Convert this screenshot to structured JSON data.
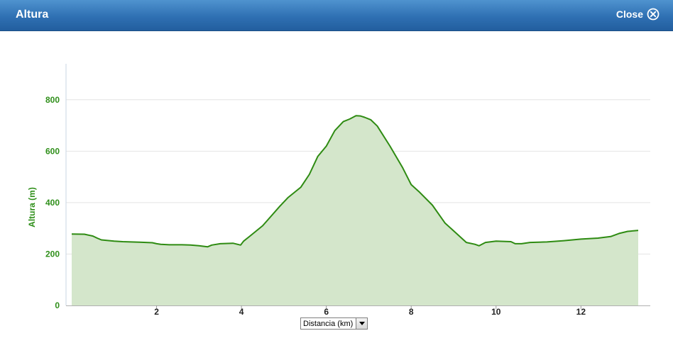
{
  "window": {
    "title": "Altura",
    "close_label": "Close",
    "close_icon": "circle-x-icon"
  },
  "axis_selector": {
    "selected": "Distancia (km)",
    "icon": "chevron-down-icon"
  },
  "colors": {
    "line": "#2e8b12",
    "fill": "#d4e6cb",
    "axis_text": "#2f8f1a",
    "grid": "#e4e4e4",
    "titlebar": "#2f70b3"
  },
  "chart_data": {
    "type": "area",
    "title": "",
    "xlabel": "",
    "ylabel": "Altura (m)",
    "xlim": [
      0,
      13.5
    ],
    "ylim": [
      0,
      940
    ],
    "x_ticks": [
      2,
      4,
      6,
      8,
      10,
      12
    ],
    "y_ticks": [
      0,
      200,
      400,
      600,
      800
    ],
    "grid": "horizontal",
    "legend": "none",
    "series": [
      {
        "x": [
          0,
          0.3,
          0.5,
          0.6,
          0.7,
          1.0,
          1.2,
          1.4,
          1.6,
          1.9,
          2.0,
          2.1,
          2.3,
          2.6,
          2.8,
          3.0,
          3.2,
          3.3,
          3.5,
          3.8,
          3.98,
          4.05,
          4.2,
          4.5,
          4.9,
          5.1,
          5.4,
          5.6,
          5.8,
          6.0,
          6.2,
          6.4,
          6.55,
          6.7,
          6.8,
          6.9,
          7.05,
          7.2,
          7.5,
          7.8,
          8.0,
          8.2,
          8.5,
          8.8,
          9.1,
          9.3,
          9.5,
          9.6,
          9.75,
          10.0,
          10.35,
          10.45,
          10.6,
          10.8,
          11.2,
          11.6,
          12.0,
          12.4,
          12.7,
          12.9,
          13.1,
          13.35
        ],
        "y": [
          278,
          277,
          270,
          262,
          255,
          250,
          248,
          247,
          246,
          244,
          240,
          238,
          236,
          236,
          235,
          232,
          228,
          235,
          240,
          242,
          235,
          250,
          270,
          310,
          385,
          420,
          460,
          510,
          580,
          620,
          680,
          715,
          725,
          738,
          737,
          732,
          722,
          698,
          620,
          535,
          470,
          440,
          390,
          320,
          275,
          245,
          238,
          232,
          245,
          250,
          248,
          240,
          240,
          245,
          247,
          252,
          258,
          262,
          268,
          280,
          288,
          292
        ]
      }
    ]
  }
}
